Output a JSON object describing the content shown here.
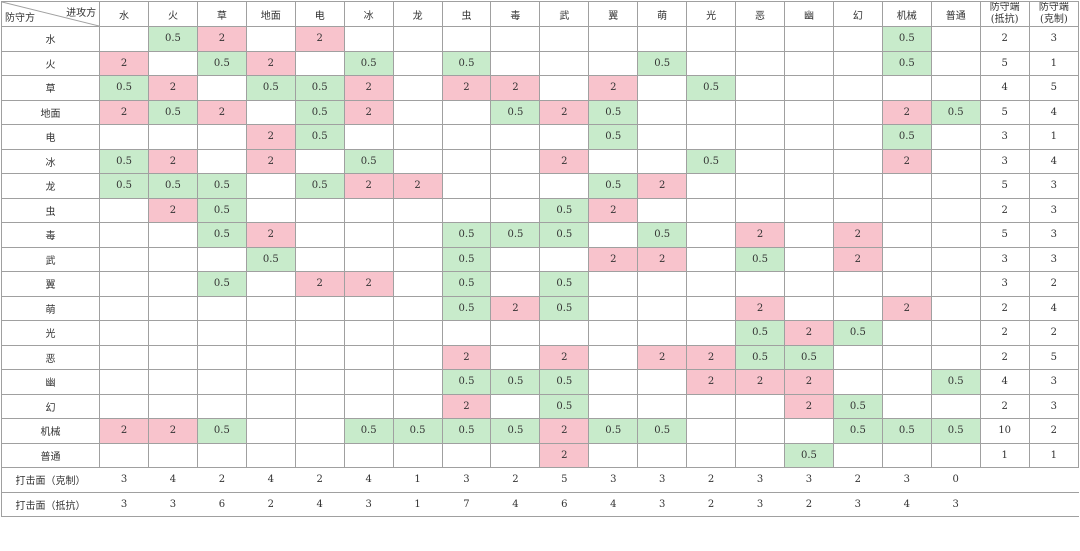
{
  "table": {
    "corner_attacker": "进攻方",
    "corner_defender": "防守方",
    "types": [
      "水",
      "火",
      "草",
      "地面",
      "电",
      "冰",
      "龙",
      "虫",
      "毒",
      "武",
      "翼",
      "萌",
      "光",
      "恶",
      "幽",
      "幻",
      "机械",
      "普通"
    ],
    "summary_headers": [
      "防守端\n(抵抗)",
      "防守端\n(克制)"
    ],
    "rows": [
      {
        "type": "水",
        "cells": [
          "",
          "0.5",
          "2",
          "",
          "2",
          "",
          "",
          "",
          "",
          "",
          "",
          "",
          "",
          "",
          "",
          "",
          "0.5",
          ""
        ],
        "resist": "2",
        "weak": "3"
      },
      {
        "type": "火",
        "cells": [
          "2",
          "",
          "0.5",
          "2",
          "",
          "0.5",
          "",
          "0.5",
          "",
          "",
          "",
          "0.5",
          "",
          "",
          "",
          "",
          "0.5",
          ""
        ],
        "resist": "5",
        "weak": "1"
      },
      {
        "type": "草",
        "cells": [
          "0.5",
          "2",
          "",
          "0.5",
          "0.5",
          "2",
          "",
          "2",
          "2",
          "",
          "2",
          "",
          "0.5",
          "",
          "",
          "",
          "",
          ""
        ],
        "resist": "4",
        "weak": "5"
      },
      {
        "type": "地面",
        "cells": [
          "2",
          "0.5",
          "2",
          "",
          "0.5",
          "2",
          "",
          "",
          "0.5",
          "2",
          "0.5",
          "",
          "",
          "",
          "",
          "",
          "2",
          "0.5"
        ],
        "resist": "5",
        "weak": "4"
      },
      {
        "type": "电",
        "cells": [
          "",
          "",
          "",
          "2",
          "0.5",
          "",
          "",
          "",
          "",
          "",
          "0.5",
          "",
          "",
          "",
          "",
          "",
          "0.5",
          ""
        ],
        "resist": "3",
        "weak": "1"
      },
      {
        "type": "冰",
        "cells": [
          "0.5",
          "2",
          "",
          "2",
          "",
          "0.5",
          "",
          "",
          "",
          "2",
          "",
          "",
          "0.5",
          "",
          "",
          "",
          "2",
          ""
        ],
        "resist": "3",
        "weak": "4"
      },
      {
        "type": "龙",
        "cells": [
          "0.5",
          "0.5",
          "0.5",
          "",
          "0.5",
          "2",
          "2",
          "",
          "",
          "",
          "0.5",
          "2",
          "",
          "",
          "",
          "",
          "",
          ""
        ],
        "resist": "5",
        "weak": "3"
      },
      {
        "type": "虫",
        "cells": [
          "",
          "2",
          "0.5",
          "",
          "",
          "",
          "",
          "",
          "",
          "0.5",
          "2",
          "",
          "",
          "",
          "",
          "",
          "",
          ""
        ],
        "resist": "2",
        "weak": "3"
      },
      {
        "type": "毒",
        "cells": [
          "",
          "",
          "0.5",
          "2",
          "",
          "",
          "",
          "0.5",
          "0.5",
          "0.5",
          "",
          "0.5",
          "",
          "2",
          "",
          "2",
          "",
          ""
        ],
        "resist": "5",
        "weak": "3"
      },
      {
        "type": "武",
        "cells": [
          "",
          "",
          "",
          "0.5",
          "",
          "",
          "",
          "0.5",
          "",
          "",
          "2",
          "2",
          "",
          "0.5",
          "",
          "2",
          "",
          ""
        ],
        "resist": "3",
        "weak": "3"
      },
      {
        "type": "翼",
        "cells": [
          "",
          "",
          "0.5",
          "",
          "2",
          "2",
          "",
          "0.5",
          "",
          "0.5",
          "",
          "",
          "",
          "",
          "",
          "",
          "",
          ""
        ],
        "resist": "3",
        "weak": "2"
      },
      {
        "type": "萌",
        "cells": [
          "",
          "",
          "",
          "",
          "",
          "",
          "",
          "0.5",
          "2",
          "0.5",
          "",
          "",
          "",
          "2",
          "",
          "",
          "2",
          ""
        ],
        "resist": "2",
        "weak": "4"
      },
      {
        "type": "光",
        "cells": [
          "",
          "",
          "",
          "",
          "",
          "",
          "",
          "",
          "",
          "",
          "",
          "",
          "",
          "0.5",
          "2",
          "0.5",
          "",
          ""
        ],
        "resist": "2",
        "weak": "2"
      },
      {
        "type": "恶",
        "cells": [
          "",
          "",
          "",
          "",
          "",
          "",
          "",
          "2",
          "",
          "2",
          "",
          "2",
          "2",
          "0.5",
          "0.5",
          "",
          "",
          ""
        ],
        "resist": "2",
        "weak": "5"
      },
      {
        "type": "幽",
        "cells": [
          "",
          "",
          "",
          "",
          "",
          "",
          "",
          "0.5",
          "0.5",
          "0.5",
          "",
          "",
          "2",
          "2",
          "2",
          "",
          "",
          "0.5"
        ],
        "resist": "4",
        "weak": "3"
      },
      {
        "type": "幻",
        "cells": [
          "",
          "",
          "",
          "",
          "",
          "",
          "",
          "2",
          "",
          "0.5",
          "",
          "",
          "",
          "",
          "2",
          "0.5",
          "",
          ""
        ],
        "resist": "2",
        "weak": "3"
      },
      {
        "type": "机械",
        "cells": [
          "2",
          "2",
          "0.5",
          "",
          "",
          "0.5",
          "0.5",
          "0.5",
          "0.5",
          "2",
          "0.5",
          "0.5",
          "",
          "",
          "",
          "0.5",
          "0.5",
          "0.5"
        ],
        "resist": "10",
        "weak": "2"
      },
      {
        "type": "普通",
        "cells": [
          "",
          "",
          "",
          "",
          "",
          "",
          "",
          "",
          "",
          "2",
          "",
          "",
          "",
          "",
          "0.5",
          "",
          "",
          ""
        ],
        "resist": "1",
        "weak": "1"
      }
    ],
    "footer": [
      {
        "label": "打击面（克制）",
        "values": [
          "3",
          "4",
          "2",
          "4",
          "2",
          "4",
          "1",
          "3",
          "2",
          "5",
          "3",
          "3",
          "2",
          "3",
          "3",
          "2",
          "3",
          "0"
        ]
      },
      {
        "label": "打击面（抵抗）",
        "values": [
          "3",
          "3",
          "6",
          "2",
          "4",
          "3",
          "1",
          "7",
          "4",
          "6",
          "4",
          "3",
          "2",
          "3",
          "2",
          "3",
          "4",
          "3"
        ]
      }
    ]
  }
}
